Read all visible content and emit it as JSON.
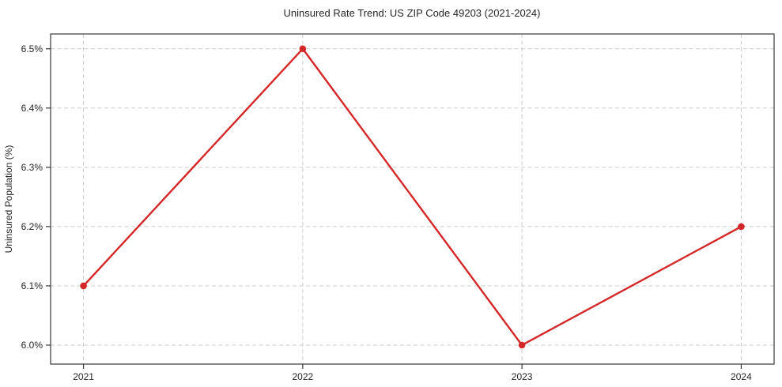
{
  "chart_data": {
    "type": "line",
    "title": "Uninsured Rate Trend: US ZIP Code 49203 (2021-2024)",
    "xlabel": "",
    "ylabel": "Uninsured Population (%)",
    "categories": [
      2021,
      2022,
      2023,
      2024
    ],
    "series": [
      {
        "name": "Uninsured Rate",
        "values": [
          6.1,
          6.5,
          6.0,
          6.2
        ]
      }
    ],
    "x_tick_labels": [
      "2021",
      "2022",
      "2023",
      "2024"
    ],
    "y_ticks": [
      6.0,
      6.1,
      6.2,
      6.3,
      6.4,
      6.5
    ],
    "y_tick_labels": [
      "6.0%",
      "6.1%",
      "6.2%",
      "6.3%",
      "6.4%",
      "6.5%"
    ],
    "ylim": [
      5.968,
      6.525
    ],
    "xlim": [
      2020.85,
      2024.15
    ],
    "grid": true,
    "legend": false,
    "colors": {
      "line": "#d62728",
      "marker": "#d62728",
      "grid": "#cccccc",
      "spine": "#3a3a3a",
      "text": "#262626",
      "background": "#ffffff"
    }
  }
}
